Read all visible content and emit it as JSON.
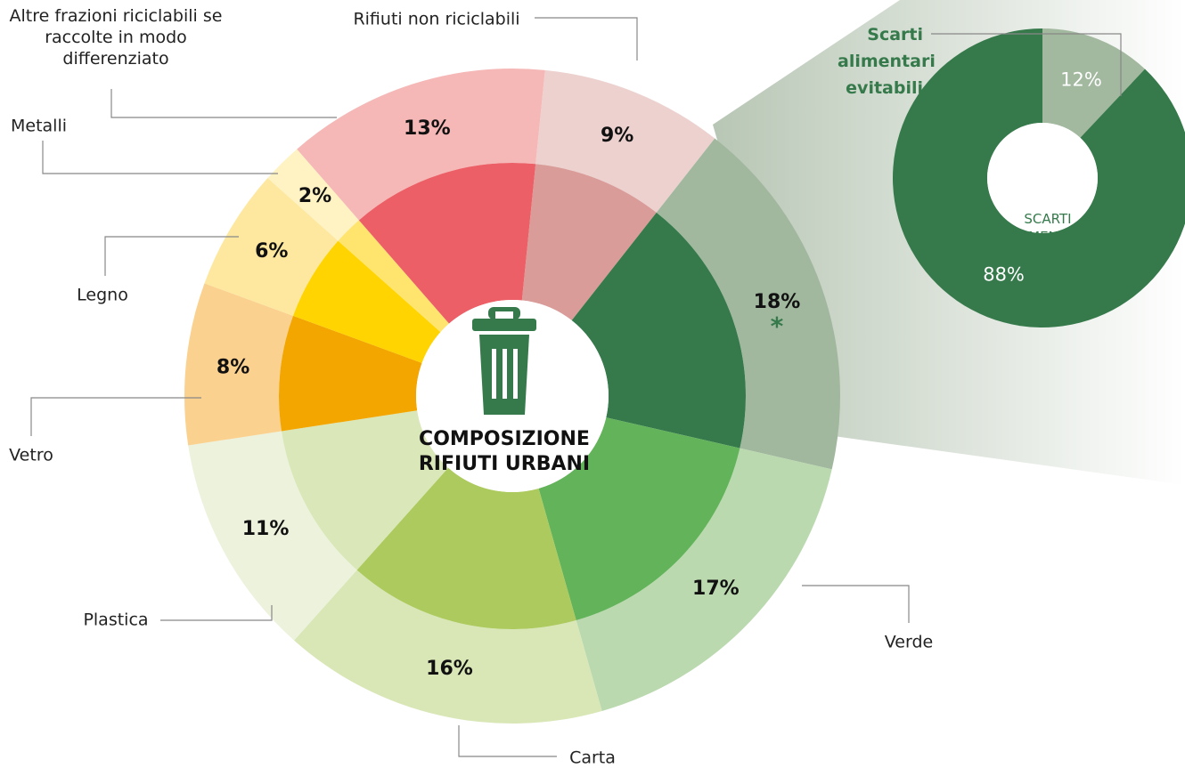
{
  "chart_data": [
    {
      "type": "donut",
      "title": "COMPOSIZIONE RIFIUTI URBANI",
      "categories": [
        "Rifiuti non riciclabili",
        null,
        "Verde",
        "Carta",
        "Plastica",
        "Vetro",
        "Legno",
        "Metalli",
        "Altre frazioni riciclabili se raccolte in modo differenziato"
      ],
      "values": [
        9,
        18,
        17,
        16,
        11,
        8,
        6,
        2,
        13
      ],
      "value_labels": [
        "9%",
        "18%",
        "17%",
        "16%",
        "11%",
        "8%",
        "6%",
        "2%",
        "13%"
      ],
      "value_notes": [
        null,
        "*",
        null,
        null,
        null,
        null,
        null,
        null,
        null
      ],
      "colors": [
        "#d99c99",
        "#367a4c",
        "#63b35a",
        "#adca5e",
        "#dae7b8",
        "#f4a600",
        "#ffd400",
        "#ffe46e",
        "#ec5f66"
      ],
      "light_colors": [
        "#ecd1cf",
        "#a1b89e",
        "#bad9af",
        "#d9e7b7",
        "#ecf2dc",
        "#fbd18f",
        "#fee89f",
        "#fff2c3",
        "#f5b8b6"
      ]
    },
    {
      "type": "donut",
      "title": "SCARTI ALIMENTARI",
      "categories": [
        "Scarti alimentari evitabili",
        null
      ],
      "values": [
        12,
        88
      ],
      "value_labels": [
        "12%",
        "88%"
      ],
      "colors": [
        "#a2b89f",
        "#367a4c"
      ]
    }
  ]
}
